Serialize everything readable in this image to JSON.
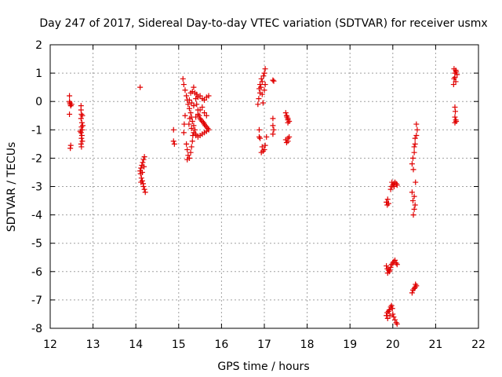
{
  "chart_data": {
    "type": "scatter",
    "title": "Day 247 of 2017, Sidereal Day-to-day VTEC variation (SDTVAR) for receiver usmx",
    "xlabel": "GPS time / hours",
    "ylabel": "SDTVAR / TECUs",
    "xlim": [
      12,
      22
    ],
    "ylim": [
      -8,
      2
    ],
    "xticks": [
      12,
      13,
      14,
      15,
      16,
      17,
      18,
      19,
      20,
      21,
      22
    ],
    "yticks": [
      -8,
      -7,
      -6,
      -5,
      -4,
      -3,
      -2,
      -1,
      0,
      1,
      2
    ],
    "grid": true,
    "marker": "+",
    "marker_color": "#e00000",
    "series": [
      {
        "name": "SDTVAR",
        "points": [
          [
            12.45,
            0.2
          ],
          [
            12.45,
            0.0
          ],
          [
            12.47,
            -0.1
          ],
          [
            12.48,
            -0.15
          ],
          [
            12.46,
            -0.05
          ],
          [
            12.5,
            -0.1
          ],
          [
            12.45,
            -0.45
          ],
          [
            12.48,
            -1.55
          ],
          [
            12.47,
            -1.65
          ],
          [
            12.72,
            -0.15
          ],
          [
            12.72,
            -0.3
          ],
          [
            12.73,
            -0.45
          ],
          [
            12.75,
            -0.5
          ],
          [
            12.72,
            -0.6
          ],
          [
            12.74,
            -0.75
          ],
          [
            12.73,
            -0.9
          ],
          [
            12.75,
            -1.0
          ],
          [
            12.72,
            -1.1
          ],
          [
            12.74,
            -1.2
          ],
          [
            12.73,
            -1.3
          ],
          [
            12.75,
            -1.4
          ],
          [
            12.72,
            -1.5
          ],
          [
            12.73,
            -1.6
          ],
          [
            12.7,
            -1.05
          ],
          [
            12.76,
            -0.85
          ],
          [
            14.1,
            0.5
          ],
          [
            14.1,
            -2.45
          ],
          [
            14.12,
            -2.35
          ],
          [
            14.14,
            -2.25
          ],
          [
            14.16,
            -2.15
          ],
          [
            14.18,
            -2.05
          ],
          [
            14.2,
            -1.95
          ],
          [
            14.11,
            -2.55
          ],
          [
            14.13,
            -2.7
          ],
          [
            14.15,
            -2.8
          ],
          [
            14.17,
            -2.9
          ],
          [
            14.18,
            -3.0
          ],
          [
            14.2,
            -3.1
          ],
          [
            14.22,
            -3.2
          ],
          [
            14.15,
            -2.5
          ],
          [
            14.19,
            -2.3
          ],
          [
            14.12,
            -2.85
          ],
          [
            14.88,
            -1.0
          ],
          [
            14.88,
            -1.4
          ],
          [
            14.9,
            -1.5
          ],
          [
            15.1,
            0.8
          ],
          [
            15.12,
            0.6
          ],
          [
            15.15,
            0.4
          ],
          [
            15.18,
            0.2
          ],
          [
            15.2,
            0.05
          ],
          [
            15.22,
            -0.1
          ],
          [
            15.25,
            -0.25
          ],
          [
            15.28,
            -0.4
          ],
          [
            15.3,
            -0.55
          ],
          [
            15.32,
            -0.7
          ],
          [
            15.35,
            -0.85
          ],
          [
            15.38,
            -1.0
          ],
          [
            15.4,
            -1.15
          ],
          [
            15.15,
            -0.5
          ],
          [
            15.13,
            -0.8
          ],
          [
            15.12,
            -1.1
          ],
          [
            15.18,
            -1.5
          ],
          [
            15.2,
            -1.7
          ],
          [
            15.22,
            -1.9
          ],
          [
            15.2,
            -2.05
          ],
          [
            15.25,
            -2.0
          ],
          [
            15.28,
            -1.8
          ],
          [
            15.3,
            -1.6
          ],
          [
            15.32,
            -1.4
          ],
          [
            15.33,
            -1.2
          ],
          [
            15.35,
            0.5
          ],
          [
            15.38,
            0.3
          ],
          [
            15.4,
            0.1
          ],
          [
            15.42,
            -0.1
          ],
          [
            15.45,
            -0.3
          ],
          [
            15.48,
            -0.5
          ],
          [
            15.5,
            -0.6
          ],
          [
            15.52,
            -0.65
          ],
          [
            15.55,
            -0.7
          ],
          [
            15.58,
            -0.75
          ],
          [
            15.6,
            -0.8
          ],
          [
            15.62,
            -0.85
          ],
          [
            15.65,
            -0.9
          ],
          [
            15.68,
            -0.95
          ],
          [
            15.7,
            -1.0
          ],
          [
            15.35,
            -1.1
          ],
          [
            15.4,
            -1.2
          ],
          [
            15.45,
            -1.25
          ],
          [
            15.5,
            -1.2
          ],
          [
            15.55,
            -1.15
          ],
          [
            15.6,
            -1.1
          ],
          [
            15.65,
            -1.05
          ],
          [
            15.42,
            0.25
          ],
          [
            15.45,
            0.15
          ],
          [
            15.5,
            0.2
          ],
          [
            15.55,
            0.1
          ],
          [
            15.6,
            0.05
          ],
          [
            15.65,
            0.15
          ],
          [
            15.7,
            0.2
          ],
          [
            15.55,
            -0.2
          ],
          [
            15.5,
            -0.3
          ],
          [
            15.45,
            -0.45
          ],
          [
            15.4,
            -0.55
          ],
          [
            15.6,
            -0.4
          ],
          [
            15.65,
            -0.5
          ],
          [
            15.25,
            0.05
          ],
          [
            15.3,
            -0.05
          ],
          [
            15.35,
            -0.15
          ],
          [
            15.28,
            0.3
          ],
          [
            15.32,
            0.35
          ],
          [
            15.26,
            -0.6
          ],
          [
            15.24,
            -0.8
          ],
          [
            15.3,
            -0.95
          ],
          [
            16.85,
            -0.1
          ],
          [
            16.87,
            0.1
          ],
          [
            16.9,
            0.3
          ],
          [
            16.92,
            0.5
          ],
          [
            16.95,
            0.7
          ],
          [
            16.98,
            0.9
          ],
          [
            17.0,
            1.0
          ],
          [
            17.02,
            1.15
          ],
          [
            16.88,
            0.45
          ],
          [
            16.9,
            0.6
          ],
          [
            16.95,
            0.25
          ],
          [
            17.0,
            0.4
          ],
          [
            17.02,
            0.6
          ],
          [
            16.97,
            -0.05
          ],
          [
            16.93,
            0.8
          ],
          [
            16.88,
            -1.0
          ],
          [
            16.88,
            -1.25
          ],
          [
            16.9,
            -1.3
          ],
          [
            16.95,
            -1.6
          ],
          [
            16.97,
            -1.75
          ],
          [
            17.0,
            -1.7
          ],
          [
            17.02,
            -1.55
          ],
          [
            17.05,
            -1.25
          ],
          [
            16.93,
            -1.8
          ],
          [
            17.2,
            0.75
          ],
          [
            17.22,
            0.72
          ],
          [
            17.2,
            -0.6
          ],
          [
            17.2,
            -0.85
          ],
          [
            17.22,
            -1.0
          ],
          [
            17.2,
            -1.15
          ],
          [
            17.5,
            -0.4
          ],
          [
            17.52,
            -0.5
          ],
          [
            17.55,
            -0.6
          ],
          [
            17.55,
            -0.65
          ],
          [
            17.58,
            -0.7
          ],
          [
            17.55,
            -0.75
          ],
          [
            17.53,
            -0.55
          ],
          [
            17.5,
            -1.35
          ],
          [
            17.52,
            -1.45
          ],
          [
            17.55,
            -1.3
          ],
          [
            17.58,
            -1.25
          ],
          [
            17.55,
            -1.4
          ],
          [
            19.85,
            -3.55
          ],
          [
            19.87,
            -3.65
          ],
          [
            19.9,
            -3.6
          ],
          [
            19.88,
            -3.45
          ],
          [
            19.95,
            -3.1
          ],
          [
            19.97,
            -3.0
          ],
          [
            20.0,
            -2.95
          ],
          [
            20.02,
            -2.9
          ],
          [
            20.05,
            -2.85
          ],
          [
            20.08,
            -2.9
          ],
          [
            20.1,
            -2.95
          ],
          [
            19.98,
            -2.85
          ],
          [
            20.03,
            -3.0
          ],
          [
            19.85,
            -5.8
          ],
          [
            19.87,
            -5.9
          ],
          [
            19.9,
            -5.95
          ],
          [
            19.92,
            -6.0
          ],
          [
            19.95,
            -5.85
          ],
          [
            19.97,
            -5.75
          ],
          [
            20.0,
            -5.7
          ],
          [
            20.02,
            -5.65
          ],
          [
            20.05,
            -5.6
          ],
          [
            20.08,
            -5.7
          ],
          [
            20.1,
            -5.75
          ],
          [
            19.88,
            -6.05
          ],
          [
            19.93,
            -5.95
          ],
          [
            19.85,
            -7.55
          ],
          [
            19.87,
            -7.45
          ],
          [
            19.9,
            -7.4
          ],
          [
            19.92,
            -7.35
          ],
          [
            19.95,
            -7.25
          ],
          [
            19.97,
            -7.2
          ],
          [
            19.99,
            -7.3
          ],
          [
            20.0,
            -7.5
          ],
          [
            20.02,
            -7.6
          ],
          [
            20.05,
            -7.7
          ],
          [
            20.08,
            -7.8
          ],
          [
            20.1,
            -7.85
          ],
          [
            19.88,
            -7.65
          ],
          [
            19.93,
            -7.55
          ],
          [
            20.45,
            -2.2
          ],
          [
            20.47,
            -2.0
          ],
          [
            20.5,
            -1.8
          ],
          [
            20.52,
            -1.5
          ],
          [
            20.55,
            -1.2
          ],
          [
            20.57,
            -1.0
          ],
          [
            20.55,
            -0.8
          ],
          [
            20.5,
            -1.6
          ],
          [
            20.52,
            -1.3
          ],
          [
            20.48,
            -2.4
          ],
          [
            20.45,
            -3.2
          ],
          [
            20.47,
            -3.5
          ],
          [
            20.5,
            -3.8
          ],
          [
            20.52,
            -3.65
          ],
          [
            20.48,
            -4.0
          ],
          [
            20.5,
            -3.35
          ],
          [
            20.53,
            -2.85
          ],
          [
            20.45,
            -6.75
          ],
          [
            20.47,
            -6.65
          ],
          [
            20.5,
            -6.6
          ],
          [
            20.52,
            -6.55
          ],
          [
            20.55,
            -6.5
          ],
          [
            20.53,
            -6.45
          ],
          [
            21.42,
            0.6
          ],
          [
            21.43,
            0.8
          ],
          [
            21.45,
            1.0
          ],
          [
            21.47,
            1.1
          ],
          [
            21.48,
            1.05
          ],
          [
            21.5,
            0.95
          ],
          [
            21.45,
            0.85
          ],
          [
            21.47,
            0.7
          ],
          [
            21.43,
            1.15
          ],
          [
            21.45,
            -0.2
          ],
          [
            21.46,
            -0.35
          ],
          [
            21.45,
            -0.55
          ],
          [
            21.47,
            -0.65
          ],
          [
            21.45,
            -0.75
          ],
          [
            21.48,
            -0.7
          ]
        ]
      }
    ]
  }
}
